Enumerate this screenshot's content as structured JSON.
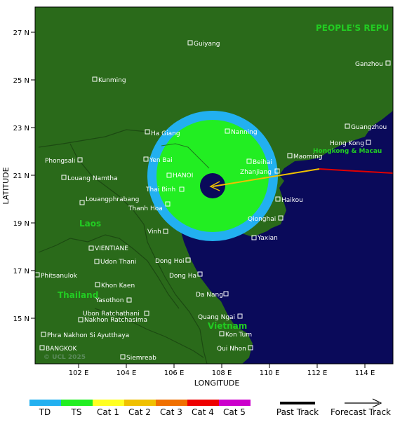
{
  "map": {
    "colors": {
      "land": "#2a6a1a",
      "sea": "#0a0a5a",
      "border": "#1c4a12"
    },
    "lat_labels": [
      "27 N",
      "25 N",
      "23 N",
      "21 N",
      "19 N",
      "17 N",
      "15 N"
    ],
    "lon_labels": [
      "102 E",
      "104 E",
      "106 E",
      "108 E",
      "110 E",
      "112 E",
      "114 E"
    ],
    "x_title": "LONGITUDE",
    "y_title": "LATITUDE",
    "copyright": "© UCL 2025",
    "countries": [
      {
        "name": "PEOPLE'S REPU",
        "color": "#22cc22"
      },
      {
        "name": "Laos",
        "color": "#22cc22"
      },
      {
        "name": "Thailand",
        "color": "#22cc22"
      },
      {
        "name": "Vietnam",
        "color": "#22cc22"
      },
      {
        "name": "Hongkong & Macau",
        "color": "#22cc22"
      }
    ],
    "cities": [
      "Guiyang",
      "Kunming",
      "Ganzhou",
      "Guangzhou",
      "Hong Kong",
      "Ha Giang",
      "Nanning",
      "Yen Bai",
      "Phongsali",
      "Beihai",
      "Maoming",
      "Zhanjiang",
      "HANOI",
      "Louang Namtha",
      "Thai Binh",
      "Haikou",
      "Louangphrabang",
      "Thanh Hoa",
      "Qionghai",
      "Vinh",
      "Yaxian",
      "VIENTIANE",
      "Udon Thani",
      "Dong Hoi",
      "Phitsanulok",
      "Dong Ha",
      "Khon Kaen",
      "Da Nang",
      "Yasothon",
      "Ubon Ratchathani",
      "Nakhon Ratchasima",
      "Quang Ngai",
      "Phra Nakhon Si Ayutthaya",
      "Kon Tum",
      "BANGKOK",
      "Qui Nhon",
      "Siemreab"
    ],
    "storm": {
      "center_lat": 20.6,
      "center_lon": 107.6,
      "ring_colors": {
        "outer": "#22b0f0",
        "inner": "#22ee22",
        "eye": "#0a0a5a"
      },
      "past_track_color": "#e00000",
      "forecast_track_color": "#f0c000"
    }
  },
  "legend": {
    "categories": [
      {
        "label": "TD",
        "color": "#22b0f0"
      },
      {
        "label": "TS",
        "color": "#22ee22"
      },
      {
        "label": "Cat 1",
        "color": "#ffff22"
      },
      {
        "label": "Cat 2",
        "color": "#f0c000"
      },
      {
        "label": "Cat 3",
        "color": "#f07000"
      },
      {
        "label": "Cat 4",
        "color": "#ee0000"
      },
      {
        "label": "Cat 5",
        "color": "#cc00cc"
      }
    ],
    "past_track_label": "Past Track",
    "forecast_track_label": "Forecast Track"
  }
}
